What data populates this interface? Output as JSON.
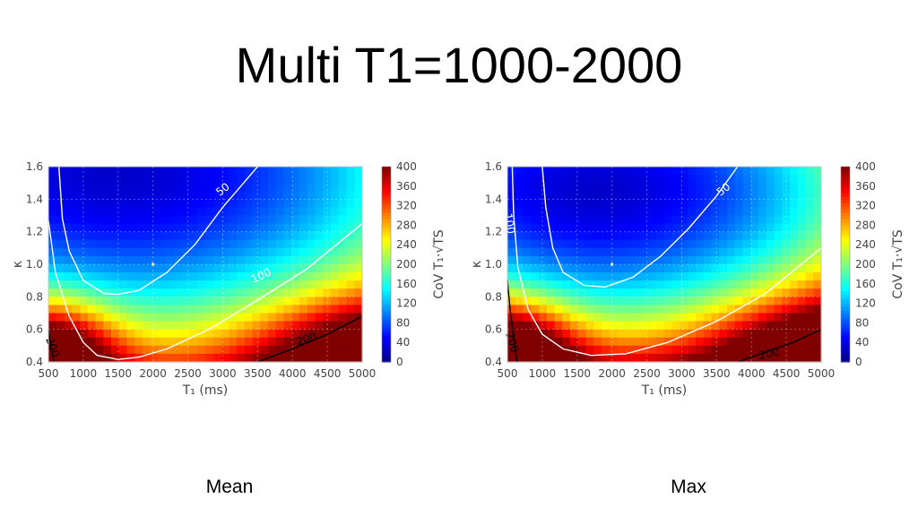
{
  "slide": {
    "title": "Multi T1=1000-2000"
  },
  "captions": [
    "Mean",
    "Max"
  ],
  "chart_data": [
    {
      "type": "heatmap",
      "panel_caption": "Mean",
      "xlabel": "T₁ (ms)",
      "ylabel": "κ",
      "colorbar_label": "CoV T₁·√TS",
      "xlim": [
        500,
        5000
      ],
      "ylim": [
        0.4,
        1.6
      ],
      "x_ticks": [
        500,
        1000,
        1500,
        2000,
        2500,
        3000,
        3500,
        4000,
        4500,
        5000
      ],
      "y_ticks": [
        0.4,
        0.6,
        0.8,
        1.0,
        1.2,
        1.4,
        1.6
      ],
      "y_tick_labels": [
        "0.4",
        "0.6",
        "0.8",
        "1.0",
        "1.2",
        "1.4",
        "1.6"
      ],
      "colorbar_range": [
        0,
        400
      ],
      "colorbar_ticks": [
        0,
        40,
        80,
        120,
        160,
        200,
        240,
        280,
        320,
        360,
        400
      ],
      "colormap": "jet",
      "grid": true,
      "marker_point": [
        2000,
        1.0
      ],
      "contour_labels": [
        "50",
        "100",
        "200",
        "200"
      ],
      "contours": [
        {
          "level": 50,
          "color": "#ffffff",
          "points": [
            [
              650,
              1.6
            ],
            [
              700,
              1.28
            ],
            [
              800,
              1.08
            ],
            [
              1000,
              0.9
            ],
            [
              1300,
              0.82
            ],
            [
              1500,
              0.815
            ],
            [
              1800,
              0.84
            ],
            [
              2200,
              0.95
            ],
            [
              2600,
              1.12
            ],
            [
              3000,
              1.35
            ],
            [
              3300,
              1.5
            ],
            [
              3500,
              1.6
            ]
          ]
        },
        {
          "level": 100,
          "color": "#ffffff",
          "points": [
            [
              500,
              1.27
            ],
            [
              600,
              0.95
            ],
            [
              800,
              0.68
            ],
            [
              1000,
              0.52
            ],
            [
              1200,
              0.44
            ],
            [
              1500,
              0.415
            ],
            [
              1800,
              0.43
            ],
            [
              2200,
              0.48
            ],
            [
              2800,
              0.6
            ],
            [
              3500,
              0.78
            ],
            [
              4200,
              0.97
            ],
            [
              5000,
              1.25
            ]
          ]
        },
        {
          "level": 200,
          "color": "#000000",
          "points": [
            [
              3500,
              0.4
            ],
            [
              4000,
              0.48
            ],
            [
              4500,
              0.57
            ],
            [
              5000,
              0.68
            ]
          ]
        },
        {
          "level": 200,
          "color": "#000000",
          "points": [
            [
              500,
              0.6
            ],
            [
              540,
              0.48
            ],
            [
              580,
              0.4
            ]
          ]
        }
      ],
      "field_model": {
        "center_x": 1500,
        "center_y": 1.55,
        "sx": 8000,
        "sy": 2.0,
        "scale": 180
      }
    },
    {
      "type": "heatmap",
      "panel_caption": "Max",
      "xlabel": "T₁ (ms)",
      "ylabel": "κ",
      "colorbar_label": "CoV T₁·√TS",
      "xlim": [
        500,
        5000
      ],
      "ylim": [
        0.4,
        1.6
      ],
      "x_ticks": [
        500,
        1000,
        1500,
        2000,
        2500,
        3000,
        3500,
        4000,
        4500,
        5000
      ],
      "y_ticks": [
        0.4,
        0.6,
        0.8,
        1.0,
        1.2,
        1.4,
        1.6
      ],
      "y_tick_labels": [
        "0.4",
        "0.6",
        "0.8",
        "1.0",
        "1.2",
        "1.4",
        "1.6"
      ],
      "colorbar_range": [
        0,
        400
      ],
      "colorbar_ticks": [
        0,
        40,
        80,
        120,
        160,
        200,
        240,
        280,
        320,
        360,
        400
      ],
      "colormap": "jet",
      "grid": true,
      "marker_point": [
        2000,
        1.0
      ],
      "contour_labels": [
        "50",
        "100",
        "200",
        "200"
      ],
      "contours": [
        {
          "level": 50,
          "color": "#ffffff",
          "points": [
            [
              1000,
              1.6
            ],
            [
              1050,
              1.35
            ],
            [
              1150,
              1.1
            ],
            [
              1300,
              0.95
            ],
            [
              1600,
              0.87
            ],
            [
              1900,
              0.86
            ],
            [
              2300,
              0.92
            ],
            [
              2700,
              1.05
            ],
            [
              3100,
              1.22
            ],
            [
              3500,
              1.42
            ],
            [
              3800,
              1.6
            ]
          ]
        },
        {
          "level": 100,
          "color": "#ffffff",
          "points": [
            [
              570,
              1.6
            ],
            [
              590,
              1.3
            ],
            [
              650,
              0.98
            ],
            [
              800,
              0.72
            ],
            [
              1000,
              0.57
            ],
            [
              1300,
              0.48
            ],
            [
              1700,
              0.44
            ],
            [
              2200,
              0.45
            ],
            [
              2800,
              0.52
            ],
            [
              3500,
              0.65
            ],
            [
              4200,
              0.82
            ],
            [
              5000,
              1.1
            ]
          ]
        },
        {
          "level": 200,
          "color": "#000000",
          "points": [
            [
              3800,
              0.4
            ],
            [
              4200,
              0.46
            ],
            [
              4600,
              0.52
            ],
            [
              5000,
              0.6
            ]
          ]
        },
        {
          "level": 200,
          "color": "#000000",
          "points": [
            [
              500,
              0.9
            ],
            [
              540,
              0.72
            ],
            [
              590,
              0.55
            ],
            [
              640,
              0.4
            ]
          ]
        }
      ],
      "field_model": {
        "center_x": 1800,
        "center_y": 1.45,
        "sx": 7000,
        "sy": 1.8,
        "scale": 200
      }
    }
  ]
}
